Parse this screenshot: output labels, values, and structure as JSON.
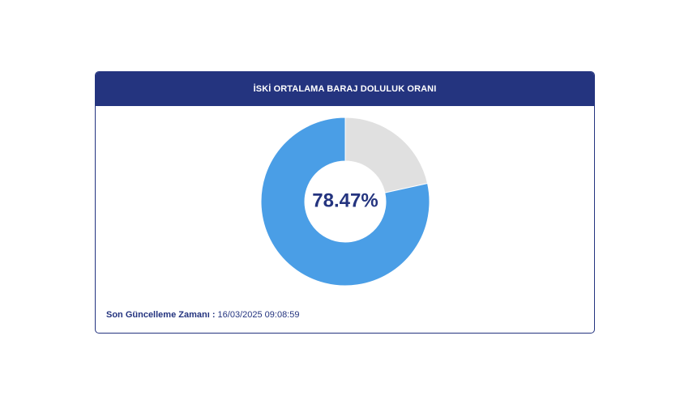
{
  "card": {
    "title": "İSKİ ORTALAMA BARAJ DOLULUK ORANI"
  },
  "chart_data": {
    "type": "pie",
    "center_label": "78.47%",
    "slices": [
      {
        "value": 78.47,
        "color": "#4a9ee6"
      },
      {
        "value": 21.53,
        "color": "#e0e0e0"
      }
    ]
  },
  "footer": {
    "label": "Son Güncelleme Zamanı :",
    "timestamp": "16/03/2025 09:08:59"
  },
  "colors": {
    "primary": "#24347f",
    "filled": "#4a9ee6",
    "empty": "#e0e0e0"
  }
}
